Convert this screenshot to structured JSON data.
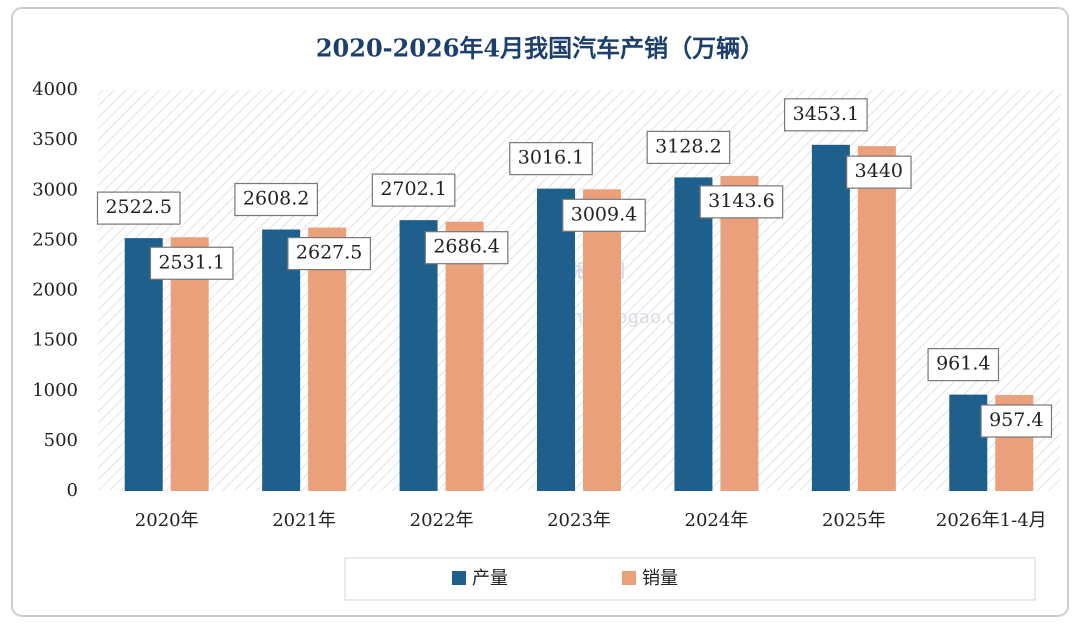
{
  "chart_data": {
    "type": "bar",
    "title": "2020-2026年4月我国汽车产销（万辆）",
    "categories": [
      "2020年",
      "2021年",
      "2022年",
      "2023年",
      "2024年",
      "2025年",
      "2026年1-4月"
    ],
    "series": [
      {
        "name": "产量",
        "color": "#1f5f8b",
        "values": [
          2522.5,
          2608.2,
          2702.1,
          3016.1,
          3128.2,
          3453.1,
          961.4
        ]
      },
      {
        "name": "销量",
        "color": "#e9a07b",
        "values": [
          2531.1,
          2627.5,
          2686.4,
          3009.4,
          3143.6,
          3440,
          957.4
        ]
      }
    ],
    "ylim": [
      0,
      4000
    ],
    "yticks": [
      0,
      500,
      1000,
      1500,
      2000,
      2500,
      3000,
      3500,
      4000
    ],
    "grid": false,
    "legend": "bottom",
    "watermark": [
      "观研报告网",
      "chinabaogao.com"
    ]
  }
}
